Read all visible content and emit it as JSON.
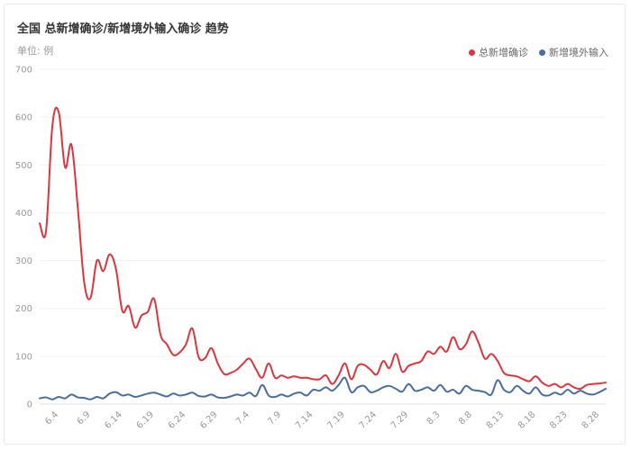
{
  "header": {
    "title": "全国 总新增确诊/新增境外输入确诊 趋势",
    "unit": "单位: 例"
  },
  "chart_data": {
    "type": "line",
    "title": "全国 总新增确诊/新增境外输入确诊 趋势",
    "xlabel": "",
    "ylabel": "单位: 例",
    "ylim": [
      0,
      700
    ],
    "yticks": [
      0,
      100,
      200,
      300,
      400,
      500,
      600,
      700
    ],
    "grid": true,
    "legend_position": "top-right",
    "x_tick_labels": [
      "6.4",
      "6.9",
      "6.14",
      "6.19",
      "6.24",
      "6.29",
      "7.4",
      "7.9",
      "7.14",
      "7.19",
      "7.24",
      "7.29",
      "8.3",
      "8.8",
      "8.13",
      "8.18",
      "8.23",
      "8.28"
    ],
    "x_tick_indices": [
      3,
      8,
      13,
      18,
      23,
      28,
      33,
      38,
      43,
      48,
      53,
      58,
      63,
      68,
      73,
      78,
      83,
      88
    ],
    "series": [
      {
        "name": "总新增确诊",
        "color": "#d9363e",
        "values": [
          378,
          362,
          582,
          610,
          495,
          542,
          410,
          255,
          222,
          300,
          278,
          313,
          282,
          195,
          205,
          160,
          185,
          193,
          220,
          145,
          125,
          103,
          108,
          125,
          158,
          98,
          96,
          117,
          85,
          63,
          65,
          72,
          85,
          95,
          73,
          55,
          85,
          55,
          60,
          55,
          58,
          55,
          55,
          52,
          52,
          60,
          42,
          60,
          85,
          52,
          80,
          82,
          72,
          62,
          90,
          75,
          105,
          68,
          80,
          85,
          90,
          110,
          105,
          120,
          110,
          140,
          115,
          125,
          152,
          128,
          95,
          105,
          90,
          65,
          60,
          58,
          52,
          48,
          58,
          45,
          38,
          42,
          35,
          42,
          35,
          32,
          40,
          42,
          43,
          45
        ]
      },
      {
        "name": "新增境外输入",
        "color": "#4a6d9b",
        "values": [
          12,
          14,
          10,
          15,
          12,
          20,
          14,
          13,
          10,
          15,
          12,
          22,
          25,
          18,
          20,
          15,
          18,
          22,
          24,
          20,
          16,
          22,
          18,
          20,
          24,
          17,
          16,
          20,
          14,
          13,
          16,
          20,
          18,
          24,
          17,
          40,
          18,
          15,
          20,
          16,
          22,
          24,
          18,
          30,
          28,
          35,
          28,
          40,
          55,
          25,
          35,
          38,
          25,
          28,
          35,
          38,
          32,
          26,
          42,
          28,
          30,
          35,
          28,
          40,
          26,
          30,
          22,
          38,
          30,
          28,
          25,
          20,
          50,
          30,
          25,
          38,
          28,
          22,
          35,
          20,
          18,
          24,
          20,
          30,
          22,
          28,
          22,
          20,
          25,
          32
        ]
      }
    ]
  }
}
